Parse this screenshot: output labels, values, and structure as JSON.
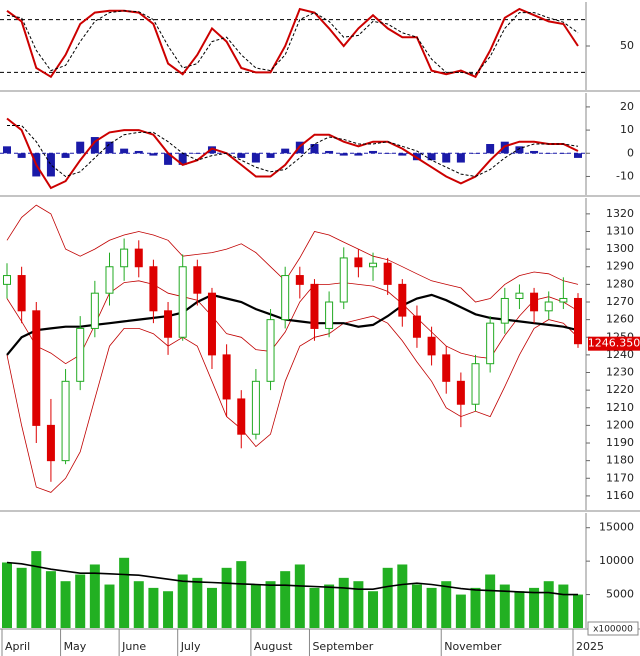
{
  "chart_data": [
    {
      "type": "line",
      "ylim": [
        0,
        100
      ],
      "yticks": [
        50
      ],
      "hlines": [
        20,
        80
      ],
      "series": [
        {
          "color": "#cc0000",
          "values": [
            90,
            78,
            25,
            15,
            40,
            75,
            88,
            90,
            90,
            88,
            75,
            30,
            18,
            40,
            70,
            55,
            25,
            20,
            20,
            50,
            92,
            88,
            70,
            50,
            70,
            85,
            70,
            60,
            60,
            22,
            18,
            22,
            15,
            45,
            82,
            92,
            85,
            78,
            75,
            50
          ]
        },
        {
          "color": "#000000",
          "dashed": true,
          "values": [
            85,
            82,
            45,
            22,
            28,
            55,
            78,
            88,
            90,
            89,
            80,
            50,
            25,
            30,
            55,
            60,
            40,
            25,
            22,
            40,
            80,
            88,
            78,
            60,
            62,
            78,
            75,
            65,
            60,
            35,
            20,
            20,
            18,
            38,
            70,
            88,
            88,
            82,
            77,
            65
          ]
        }
      ]
    },
    {
      "type": "macd",
      "ylim": [
        -18,
        26
      ],
      "yticks": [
        -10,
        0,
        10,
        20
      ],
      "hlines": [
        0
      ],
      "histogram": {
        "color": "#1a1aa8",
        "values": [
          3,
          -2,
          -10,
          -10,
          -2,
          5,
          7,
          5,
          2,
          1,
          -1,
          -5,
          -5,
          0,
          3,
          0,
          -2,
          -4,
          -2,
          2,
          5,
          4,
          1,
          -1,
          -1,
          1,
          0,
          -1,
          -3,
          -3,
          -4,
          -4,
          0,
          4,
          5,
          3,
          1,
          0,
          0,
          -2
        ]
      },
      "series": [
        {
          "color": "#cc0000",
          "values": [
            15,
            10,
            -5,
            -15,
            -12,
            -3,
            5,
            9,
            10,
            10,
            8,
            0,
            -5,
            -3,
            2,
            0,
            -5,
            -10,
            -10,
            -5,
            3,
            8,
            8,
            5,
            3,
            5,
            5,
            2,
            -2,
            -6,
            -10,
            -13,
            -10,
            -3,
            3,
            5,
            5,
            4,
            4,
            1
          ]
        },
        {
          "color": "#000000",
          "dashed": true,
          "values": [
            12,
            12,
            5,
            -5,
            -10,
            -8,
            -2,
            4,
            8,
            9,
            9,
            5,
            0,
            -3,
            -1,
            0,
            -3,
            -6,
            -8,
            -7,
            -2,
            4,
            7,
            6,
            4,
            4,
            5,
            3,
            1,
            -3,
            -6,
            -9,
            -10,
            -7,
            -2,
            2,
            4,
            4,
            4,
            3
          ]
        }
      ]
    },
    {
      "type": "candlestick",
      "ylim": [
        1152,
        1329
      ],
      "yticks": [
        1160,
        1170,
        1180,
        1190,
        1200,
        1210,
        1220,
        1230,
        1240,
        1250,
        1260,
        1270,
        1280,
        1290,
        1300,
        1310,
        1320
      ],
      "up_color": "#22aa22",
      "down_color": "#dd0000",
      "open": [
        1280,
        1285,
        1265,
        1200,
        1180,
        1225,
        1255,
        1275,
        1290,
        1300,
        1290,
        1265,
        1250,
        1290,
        1275,
        1240,
        1215,
        1195,
        1225,
        1260,
        1285,
        1280,
        1255,
        1270,
        1295,
        1290,
        1292,
        1280,
        1262,
        1250,
        1240,
        1225,
        1212,
        1235,
        1258,
        1272,
        1275,
        1265,
        1270,
        1272
      ],
      "high": [
        1292,
        1290,
        1270,
        1215,
        1232,
        1262,
        1282,
        1298,
        1306,
        1305,
        1294,
        1270,
        1297,
        1294,
        1278,
        1246,
        1220,
        1232,
        1266,
        1290,
        1290,
        1283,
        1276,
        1301,
        1300,
        1298,
        1295,
        1283,
        1268,
        1256,
        1245,
        1230,
        1240,
        1262,
        1278,
        1280,
        1278,
        1276,
        1284,
        1275
      ],
      "low": [
        1272,
        1258,
        1190,
        1168,
        1178,
        1220,
        1250,
        1268,
        1282,
        1284,
        1258,
        1240,
        1248,
        1268,
        1232,
        1205,
        1187,
        1192,
        1220,
        1255,
        1272,
        1248,
        1250,
        1266,
        1284,
        1282,
        1274,
        1256,
        1244,
        1234,
        1218,
        1199,
        1208,
        1230,
        1252,
        1266,
        1258,
        1260,
        1266,
        1244
      ],
      "close": [
        1285,
        1265,
        1200,
        1180,
        1225,
        1255,
        1275,
        1290,
        1300,
        1290,
        1265,
        1250,
        1290,
        1275,
        1240,
        1215,
        1195,
        1225,
        1260,
        1285,
        1280,
        1255,
        1270,
        1295,
        1290,
        1292,
        1280,
        1262,
        1250,
        1240,
        1225,
        1212,
        1235,
        1258,
        1272,
        1275,
        1265,
        1270,
        1272,
        1246.35
      ],
      "bands": {
        "color": "#c00000",
        "upper": [
          1305,
          1318,
          1325,
          1320,
          1300,
          1296,
          1300,
          1305,
          1308,
          1310,
          1308,
          1305,
          1296,
          1297,
          1298,
          1300,
          1303,
          1298,
          1290,
          1282,
          1295,
          1310,
          1308,
          1304,
          1300,
          1296,
          1294,
          1290,
          1286,
          1282,
          1280,
          1278,
          1270,
          1272,
          1280,
          1285,
          1287,
          1286,
          1282,
          1280
        ],
        "middle": [
          1272,
          1259,
          1245,
          1241,
          1235,
          1240,
          1257,
          1275,
          1281,
          1282,
          1280,
          1275,
          1273,
          1271,
          1262,
          1252,
          1250,
          1243,
          1242,
          1253,
          1270,
          1280,
          1280,
          1281,
          1280,
          1279,
          1276,
          1269,
          1261,
          1253,
          1245,
          1241,
          1239,
          1238,
          1251,
          1262,
          1271,
          1273,
          1270,
          1265
        ],
        "lower": [
          1240,
          1200,
          1165,
          1162,
          1170,
          1185,
          1215,
          1245,
          1255,
          1255,
          1252,
          1245,
          1250,
          1245,
          1225,
          1205,
          1198,
          1188,
          1195,
          1225,
          1245,
          1250,
          1252,
          1258,
          1260,
          1262,
          1258,
          1248,
          1236,
          1225,
          1210,
          1205,
          1208,
          1205,
          1222,
          1240,
          1255,
          1260,
          1258,
          1250
        ]
      },
      "ma": {
        "color": "#000000",
        "values": [
          1240,
          1250,
          1254,
          1255,
          1256,
          1256,
          1257,
          1258,
          1259,
          1260,
          1261,
          1262,
          1264,
          1270,
          1274,
          1272,
          1270,
          1266,
          1263,
          1260,
          1259,
          1258,
          1258,
          1258,
          1256,
          1257,
          1262,
          1268,
          1272,
          1274,
          1271,
          1267,
          1263,
          1261,
          1260,
          1259,
          1258,
          1257,
          1256,
          1254
        ]
      },
      "last_value": {
        "value": 1246.35,
        "label": "1246.350"
      }
    },
    {
      "type": "bar",
      "ylim": [
        0,
        17200
      ],
      "yticks": [
        5000,
        10000,
        15000
      ],
      "unit_label": "x100000",
      "color": "#22b022",
      "values": [
        9800,
        9000,
        11500,
        8500,
        7000,
        8000,
        9500,
        6500,
        10500,
        7000,
        6000,
        5500,
        8000,
        7500,
        6000,
        9000,
        10000,
        6500,
        7000,
        8500,
        9500,
        6000,
        6500,
        7500,
        7000,
        5500,
        9000,
        9500,
        6500,
        6000,
        7000,
        5000,
        6000,
        8000,
        6500,
        5500,
        6000,
        7000,
        6500,
        5000
      ],
      "ma": {
        "color": "#000000",
        "values": [
          9800,
          9600,
          9200,
          8800,
          8500,
          8200,
          8200,
          8100,
          8000,
          7900,
          7600,
          7300,
          7000,
          6900,
          6800,
          6700,
          6600,
          6500,
          6400,
          6400,
          6300,
          6200,
          6100,
          6000,
          5800,
          5800,
          6200,
          6500,
          6700,
          6500,
          6200,
          5900,
          5700,
          5600,
          5500,
          5400,
          5300,
          5300,
          5000,
          5000
        ]
      },
      "categories": [
        "April",
        null,
        null,
        null,
        "May",
        null,
        null,
        null,
        "June",
        null,
        null,
        null,
        "July",
        null,
        null,
        null,
        null,
        "August",
        null,
        null,
        null,
        "September",
        null,
        null,
        null,
        null,
        null,
        null,
        null,
        null,
        "November",
        null,
        null,
        null,
        null,
        null,
        null,
        null,
        null,
        "2025"
      ]
    }
  ]
}
